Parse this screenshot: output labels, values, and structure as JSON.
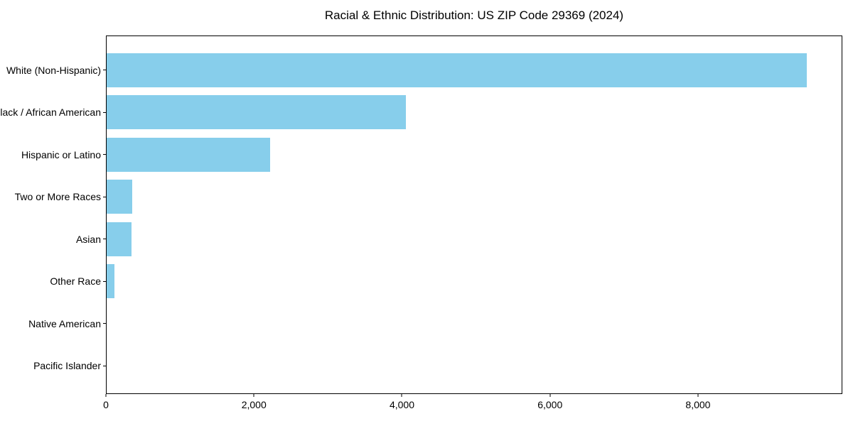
{
  "chart_data": {
    "type": "bar",
    "orientation": "horizontal",
    "title": "Racial & Ethnic Distribution: US ZIP Code 29369 (2024)",
    "categories": [
      "White (Non-Hispanic)",
      "Black / African American",
      "Hispanic or Latino",
      "Two or More Races",
      "Asian",
      "Other Race",
      "Native American",
      "Pacific Islander"
    ],
    "values": [
      9480,
      4050,
      2210,
      345,
      335,
      110,
      0,
      0
    ],
    "xlabel": "",
    "ylabel": "",
    "xlim": [
      0,
      9950
    ],
    "x_ticks": [
      0,
      2000,
      4000,
      6000,
      8000
    ],
    "x_tick_labels": [
      "0",
      "2,000",
      "4,000",
      "6,000",
      "8,000"
    ],
    "bar_color": "#87CEEB",
    "grid": false,
    "legend": false,
    "background_color": "#ffffff",
    "spine_color": "#000000"
  }
}
